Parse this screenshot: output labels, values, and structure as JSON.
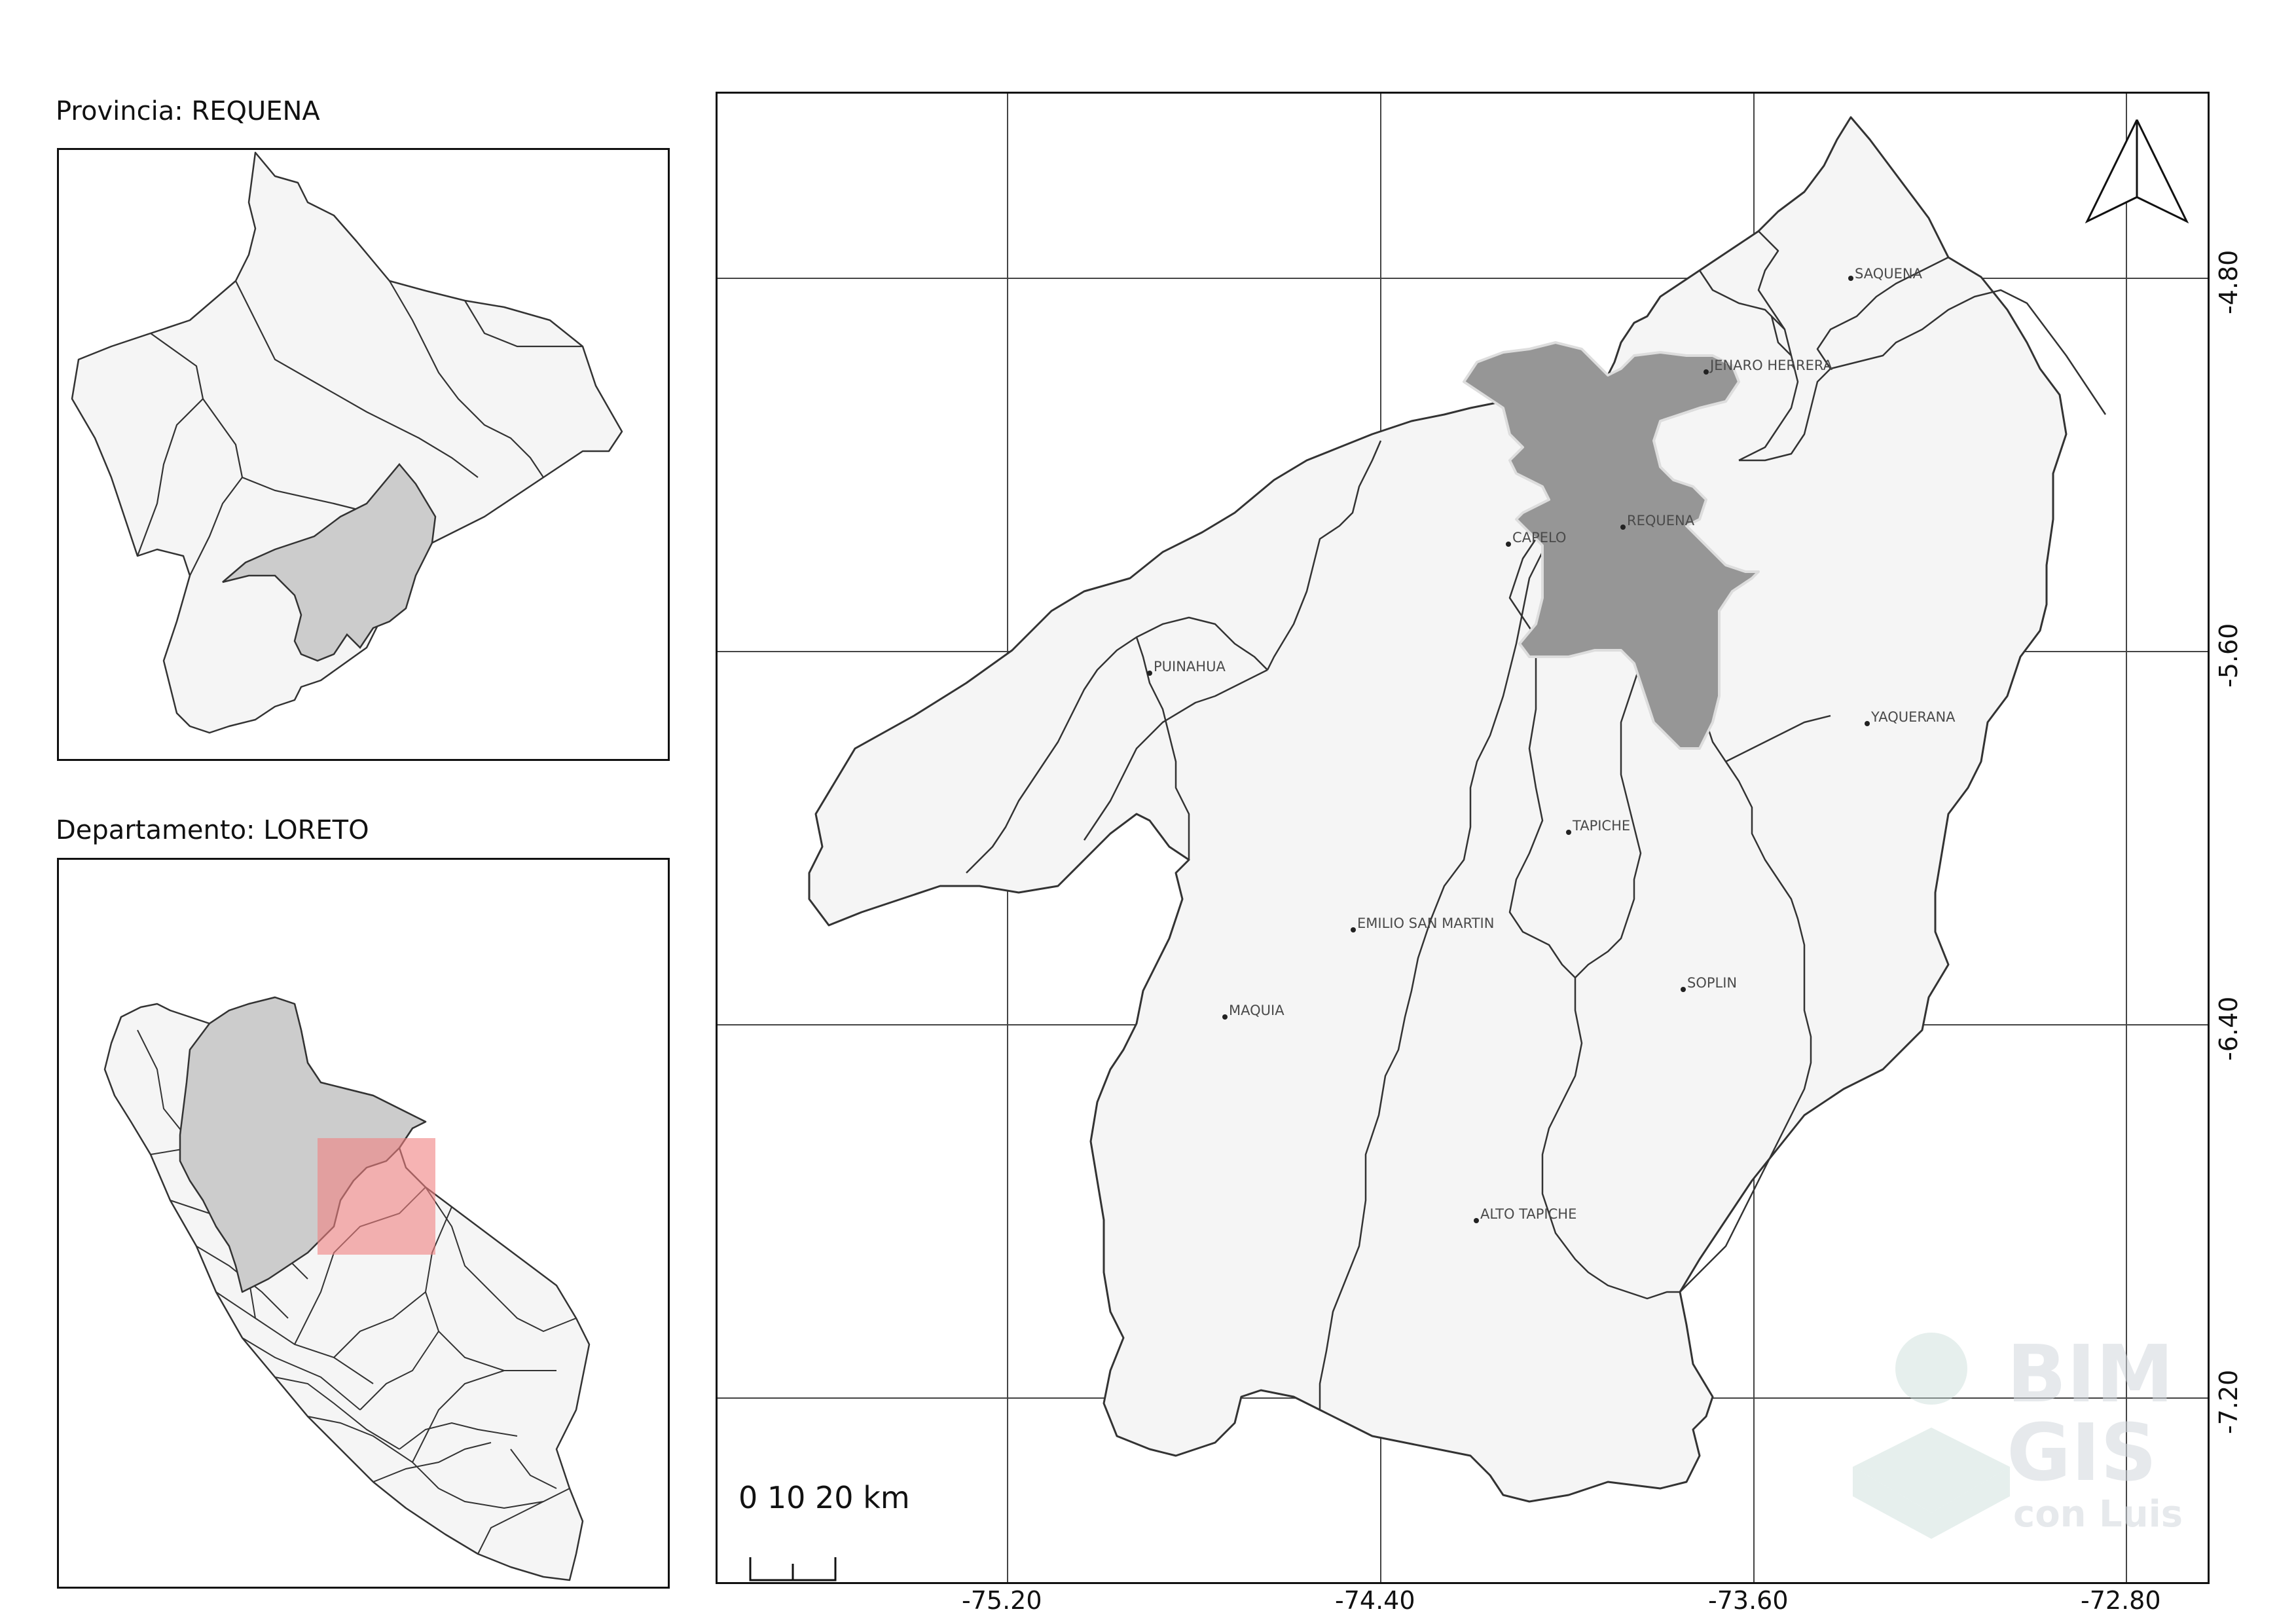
{
  "insets": {
    "province": {
      "title": "Provincia: REQUENA"
    },
    "department": {
      "title": "Departamento: LORETO"
    }
  },
  "main_map": {
    "longitude_ticks": [
      "-75.20",
      "-74.40",
      "-73.60",
      "-72.80"
    ],
    "latitude_ticks": [
      "-4.80",
      "-5.60",
      "-6.40",
      "-7.20"
    ],
    "districts": [
      {
        "name": "SAQUENA"
      },
      {
        "name": "JENARO HERRERA"
      },
      {
        "name": "CAPELO"
      },
      {
        "name": "REQUENA"
      },
      {
        "name": "PUINAHUA"
      },
      {
        "name": "YAQUERANA"
      },
      {
        "name": "TAPICHE"
      },
      {
        "name": "EMILIO SAN MARTIN"
      },
      {
        "name": "SOPLIN"
      },
      {
        "name": "MAQUIA"
      },
      {
        "name": "ALTO TAPICHE"
      }
    ],
    "highlighted_district": "REQUENA",
    "scale_bar": {
      "label": "0  10 20 km"
    },
    "north_arrow": {
      "icon": "north-arrow-icon"
    }
  },
  "watermark": {
    "line1": "BIM",
    "line2": "GIS",
    "line3": "con Luis"
  },
  "colors": {
    "land": "#f5f5f5",
    "highlight_province": "#cccccc",
    "highlight_district": "#969696",
    "extent_box": "#f08080",
    "border": "#333333"
  }
}
